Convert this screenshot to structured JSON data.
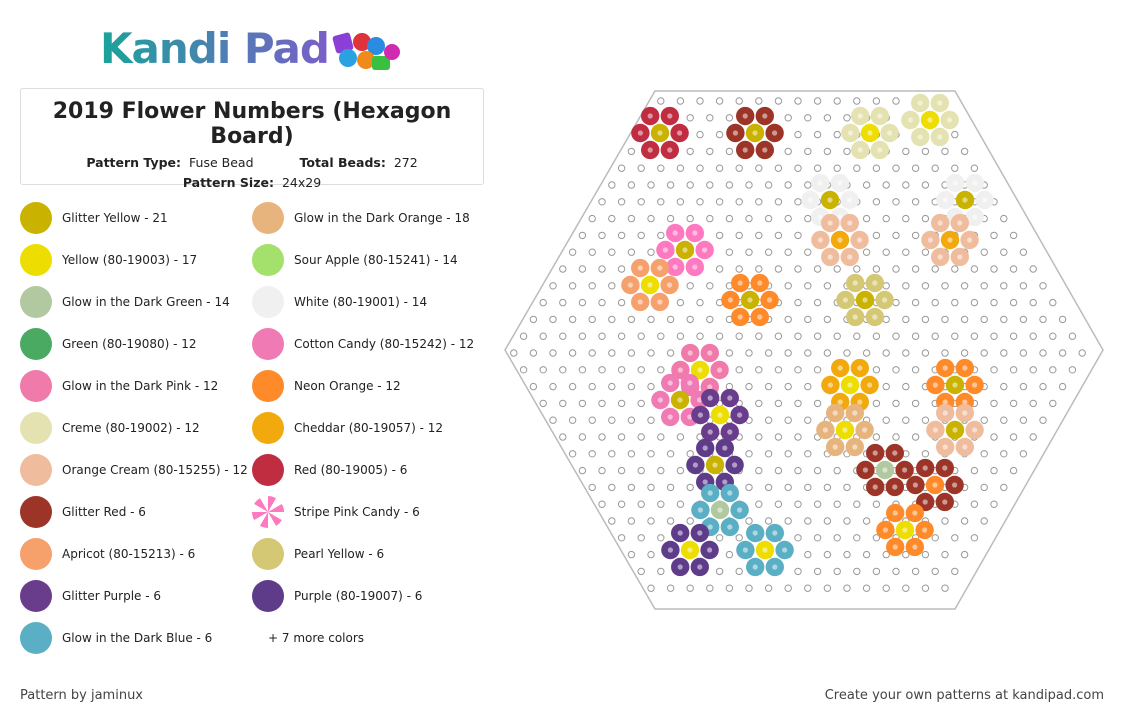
{
  "header": {
    "logo": "Kandi Pad",
    "title": "2019 Flower Numbers (Hexagon Board)",
    "pattern_type_label": "Pattern Type:",
    "pattern_type": "Fuse Bead",
    "total_beads_label": "Total Beads:",
    "total_beads": 272,
    "pattern_size_label": "Pattern Size:",
    "pattern_size": "24x29"
  },
  "colors": [
    {
      "label": "Glitter Yellow - 21",
      "color": "#c9b300"
    },
    {
      "label": "Glow in the Dark Orange - 18",
      "color": "#e8b47e"
    },
    {
      "label": "Yellow (80-19003) - 17",
      "color": "#eedd00"
    },
    {
      "label": "Sour Apple (80-15241) - 14",
      "color": "#a4e06c"
    },
    {
      "label": "Glow in the Dark Green - 14",
      "color": "#b2c8a0"
    },
    {
      "label": "White (80-19001) - 14",
      "color": "#f0f0f0"
    },
    {
      "label": "Green (80-19080) - 12",
      "color": "#4aaa62"
    },
    {
      "label": "Cotton Candy (80-15242) - 12",
      "color": "#f07ab4"
    },
    {
      "label": "Glow in the Dark Pink - 12",
      "color": "#f07aaa"
    },
    {
      "label": "Neon Orange - 12",
      "color": "#ff8a2a"
    },
    {
      "label": "Creme (80-19002) - 12",
      "color": "#e4e2b0"
    },
    {
      "label": "Cheddar (80-19057) - 12",
      "color": "#f2a90e"
    },
    {
      "label": "Orange Cream (80-15255) - 12",
      "color": "#f0bc9e"
    },
    {
      "label": "Red (80-19005) - 6",
      "color": "#c02c40"
    },
    {
      "label": "Glitter Red - 6",
      "color": "#9c3428"
    },
    {
      "label": "Stripe Pink Candy - 6",
      "color": "#ff79c0"
    },
    {
      "label": "Apricot (80-15213) - 6",
      "color": "#f6a06c"
    },
    {
      "label": "Pearl Yellow - 6",
      "color": "#d4c874"
    },
    {
      "label": "Glitter Purple - 6",
      "color": "#6a3d8c"
    },
    {
      "label": "Purple (80-19007) - 6",
      "color": "#5e3c8a"
    },
    {
      "label": "Glow in the Dark Blue - 6",
      "color": "#5aafc4"
    }
  ],
  "more_colors": "+ 7 more colors",
  "footer": {
    "credit": "Pattern by jaminux",
    "cta": "Create your own patterns at kandipad.com"
  }
}
